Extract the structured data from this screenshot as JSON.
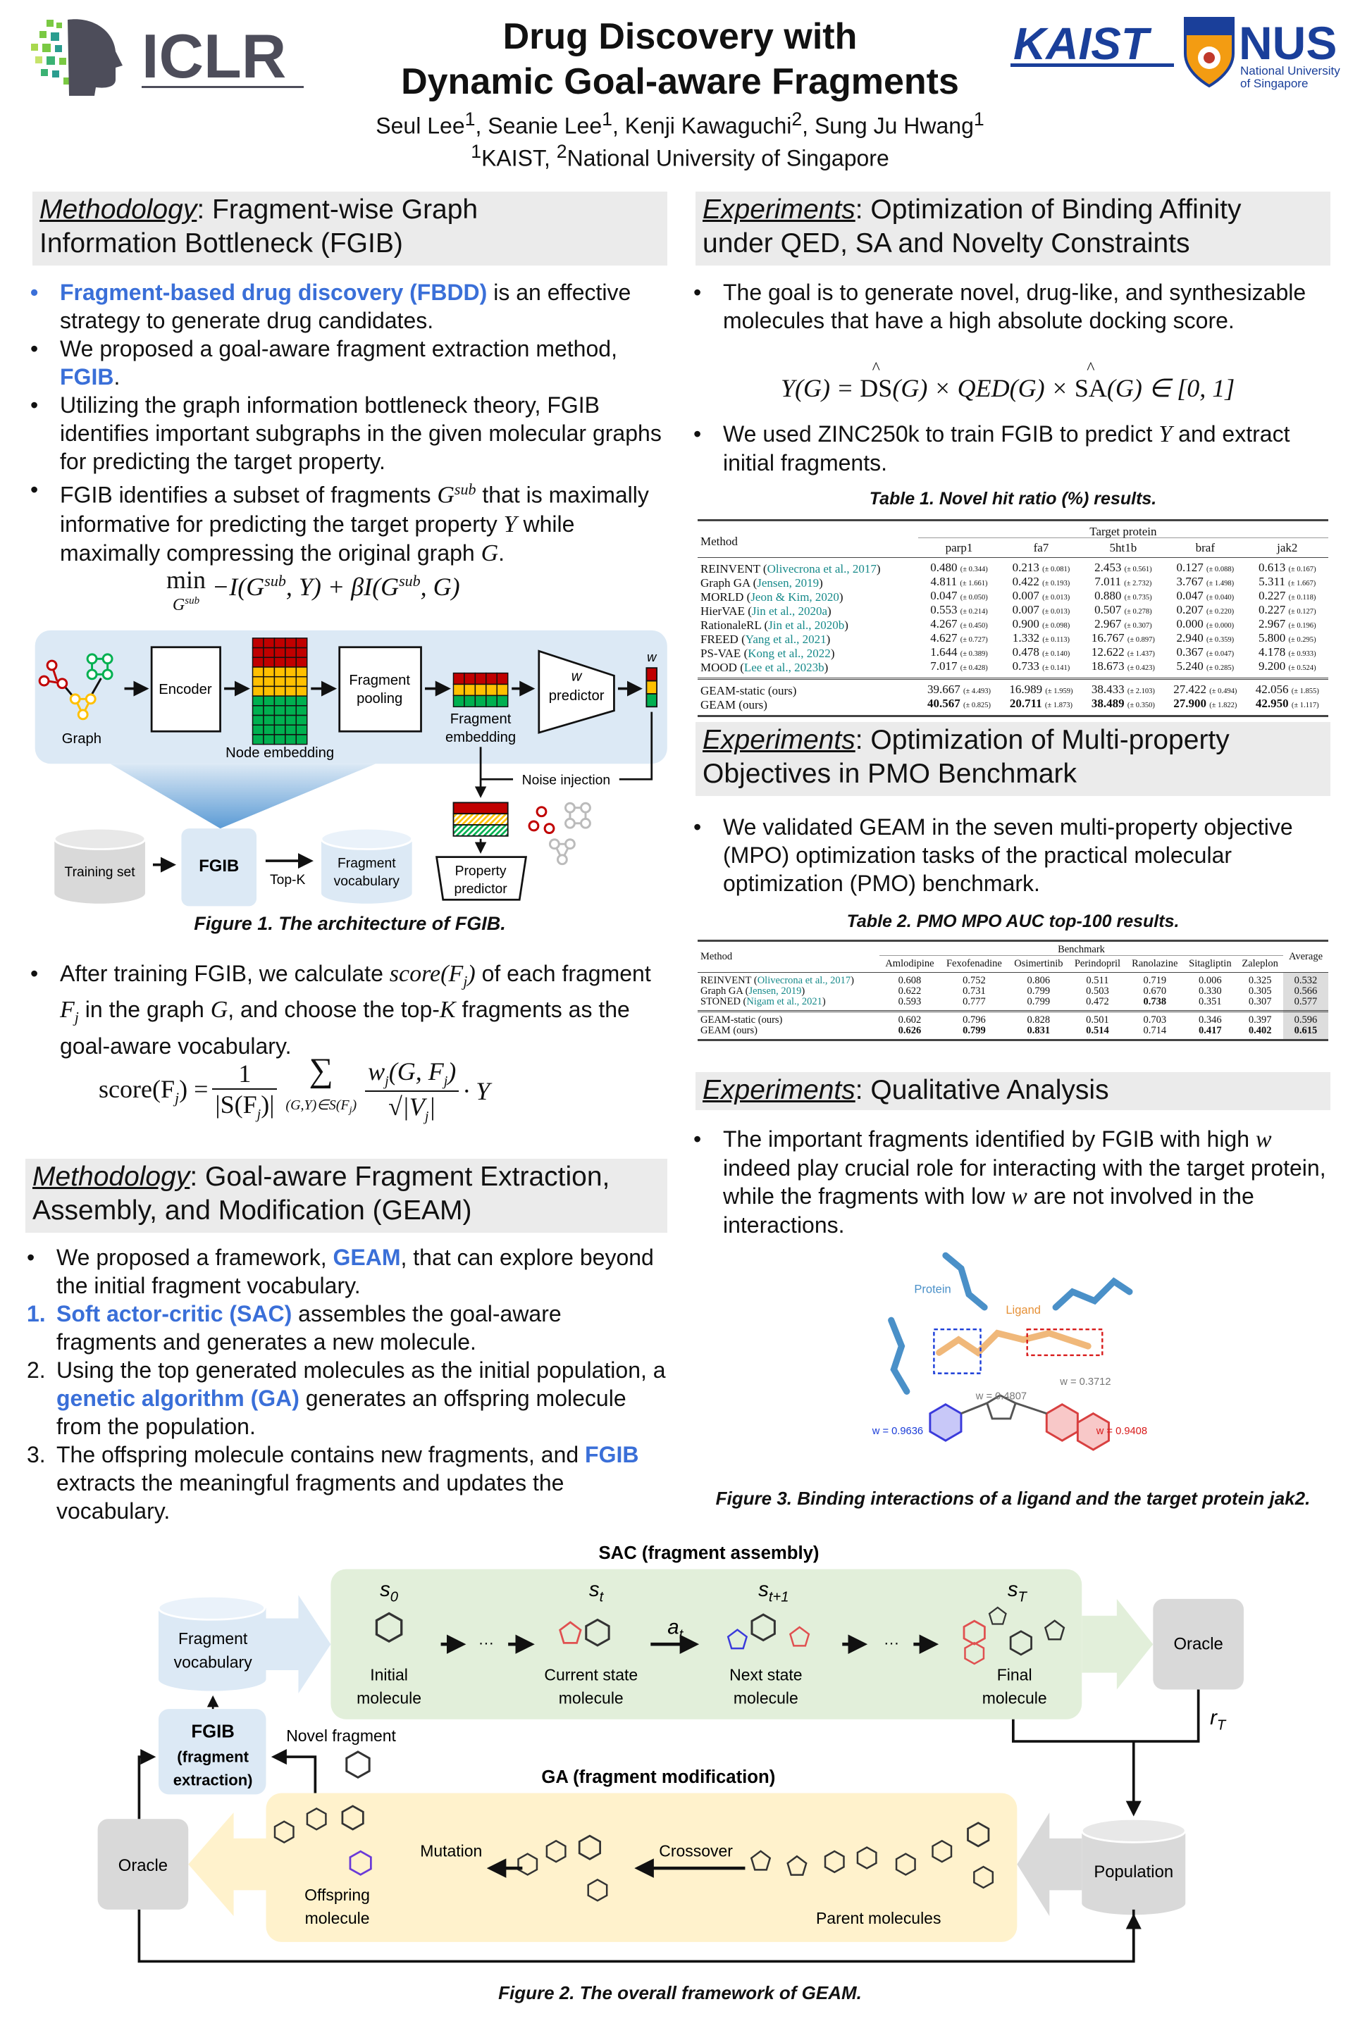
{
  "header": {
    "title_line1": "Drug Discovery with",
    "title_line2": "Dynamic Goal-aware Fragments",
    "authors": [
      {
        "name": "Seul Lee",
        "aff": "1"
      },
      {
        "name": "Seanie Lee",
        "aff": "1"
      },
      {
        "name": "Kenji Kawaguchi",
        "aff": "2"
      },
      {
        "name": "Sung Ju Hwang",
        "aff": "1"
      }
    ],
    "affiliations": [
      {
        "num": "1",
        "name": "KAIST"
      },
      {
        "num": "2",
        "name": "National University of Singapore"
      }
    ],
    "logos": {
      "iclr": "ICLR",
      "kaist": "KAIST",
      "nus": "NUS",
      "nus_sub1": "National University",
      "nus_sub2": "of Singapore"
    }
  },
  "colors": {
    "highlight": "#3a6fd8",
    "section_bg": "#ebebeb",
    "citation": "#178a8a",
    "red": "#c00000",
    "yellow": "#ffc000",
    "green": "#00b050"
  },
  "left": {
    "sec1": {
      "kw": "Methodology",
      "rest1": ": Fragment-wise Graph",
      "rest2": "Information Bottleneck (FGIB)"
    },
    "bullets1": [
      {
        "mk": "•",
        "mkhl": true,
        "segs": [
          {
            "t": "Fragment-based drug discovery (FBDD)",
            "s": "hl"
          },
          {
            "t": " is an effective strategy to generate drug candidates.",
            "s": ""
          }
        ]
      },
      {
        "mk": "•",
        "segs": [
          {
            "t": "We proposed a goal-aware fragment extraction method, ",
            "s": ""
          },
          {
            "t": "FGIB",
            "s": "hl"
          },
          {
            "t": ".",
            "s": ""
          }
        ]
      },
      {
        "mk": "•",
        "segs": [
          {
            "t": "Utilizing the graph information bottleneck theory, FGIB identifies important subgraphs in the given molecular graphs for predicting the target property.",
            "s": ""
          }
        ]
      },
      {
        "mk": "•",
        "segs": [
          {
            "t": "FGIB identifies a subset of fragments ",
            "s": ""
          },
          {
            "t": "G",
            "s": "m"
          },
          {
            "t": "sub",
            "s": "sup"
          },
          {
            "t": " that is maximally informative for predicting the target property ",
            "s": ""
          },
          {
            "t": "Y",
            "s": "m"
          },
          {
            "t": " while maximally compressing the original graph ",
            "s": ""
          },
          {
            "t": "G",
            "s": "m"
          },
          {
            "t": ".",
            "s": ""
          }
        ]
      }
    ],
    "formula1": {
      "min": "min",
      "under": "G",
      "under_sup": "sub",
      "body": "−I(G",
      "sup1": "sub",
      "body2": ", Y) + βI(G",
      "sup2": "sub",
      "body3": ", G)"
    },
    "fig1": {
      "graph": "Graph",
      "encoder": "Encoder",
      "node_embedding": "Node embedding",
      "pool1": "Fragment",
      "pool2": "pooling",
      "femb1": "Fragment",
      "femb2": "embedding",
      "wpred1": "w",
      "wpred2": "predictor",
      "w": "w",
      "noise": "Noise injection",
      "prop1": "Property",
      "prop2": "predictor",
      "training": "Training set",
      "fgib": "FGIB",
      "topk": "Top-K",
      "vocab1": "Fragment",
      "vocab2": "vocabulary",
      "caption_label": "Figure 1.",
      "caption": " The architecture of FGIB."
    },
    "bullets2": [
      {
        "mk": "•",
        "segs": [
          {
            "t": "After training FGIB, we calculate ",
            "s": ""
          },
          {
            "t": "score",
            "s": "m"
          },
          {
            "t": "(",
            "s": "m"
          },
          {
            "t": "F",
            "s": "m"
          },
          {
            "t": "j",
            "s": "sub"
          },
          {
            "t": ")",
            "s": "m"
          },
          {
            "t": " of each fragment ",
            "s": ""
          },
          {
            "t": "F",
            "s": "m"
          },
          {
            "t": "j",
            "s": "sub"
          },
          {
            "t": " in the graph ",
            "s": ""
          },
          {
            "t": "G",
            "s": "m"
          },
          {
            "t": ", and choose the top-",
            "s": ""
          },
          {
            "t": "K",
            "s": "m"
          },
          {
            "t": " fragments as the goal-aware vocabulary.",
            "s": ""
          }
        ]
      }
    ],
    "formula2": {
      "lhs": "score(F",
      "lhs_sub": "j",
      "lhs2": ") =",
      "n1": "1",
      "d1": "|S(F",
      "d1_sub": "j",
      "d1b": ")|",
      "sigma": "∑",
      "sigma_under": "(G,Y)∈S(F",
      "sigma_under_sub": "j",
      "sigma_under2": ")",
      "n2": "w",
      "n2_sub": "j",
      "n2b": "(G, F",
      "n2b_sub": "j",
      "n2c": ")",
      "d2": "√|V",
      "d2_sub": "j",
      "d2b": "|",
      "tail": "· Y"
    },
    "sec2": {
      "kw": "Methodology",
      "rest1": ": Goal-aware Fragment Extraction,",
      "rest2": "Assembly, and Modification (GEAM)"
    },
    "bullets3": [
      {
        "mk": "•",
        "segs": [
          {
            "t": "We proposed a framework, ",
            "s": ""
          },
          {
            "t": "GEAM",
            "s": "hl"
          },
          {
            "t": ", that can explore beyond the initial fragment vocabulary.",
            "s": ""
          }
        ]
      },
      {
        "mk": "1.",
        "mkhl": true,
        "segs": [
          {
            "t": "Soft actor-critic (SAC)",
            "s": "hl"
          },
          {
            "t": " assembles the goal-aware fragments and generates a new molecule.",
            "s": ""
          }
        ]
      },
      {
        "mk": "2.",
        "segs": [
          {
            "t": "Using the top generated molecules as the initial population, a ",
            "s": ""
          },
          {
            "t": "genetic algorithm (GA)",
            "s": "hl"
          },
          {
            "t": " generates an offspring molecule from the population.",
            "s": ""
          }
        ]
      },
      {
        "mk": "3.",
        "segs": [
          {
            "t": "The offspring molecule contains new fragments, and ",
            "s": ""
          },
          {
            "t": "FGIB",
            "s": "hl"
          },
          {
            "t": " extracts the meaningful fragments and updates the vocabulary.",
            "s": ""
          }
        ]
      }
    ]
  },
  "right": {
    "sec1": {
      "kw": "Experiments",
      "rest1": ": Optimization of Binding Affinity",
      "rest2": "under QED, SA and Novelty Constraints"
    },
    "bullets1": [
      {
        "mk": "•",
        "segs": [
          {
            "t": "The goal is to generate novel, drug-like, and synthesizable molecules that have a high absolute docking score.",
            "s": ""
          }
        ]
      }
    ],
    "formula": {
      "lhs": "Y(G) =",
      "ds": "DS",
      "g1": "(G) × QED(G) ×",
      "sa": "SA",
      "g2": "(G) ∈ [0, 1]"
    },
    "bullets2": [
      {
        "mk": "•",
        "segs": [
          {
            "t": "We used ZINC250k to train FGIB to predict ",
            "s": ""
          },
          {
            "t": "Y",
            "s": "m"
          },
          {
            "t": " and extract initial fragments.",
            "s": ""
          }
        ]
      }
    ],
    "table1": {
      "caption_label": "Table 1.",
      "caption": " Novel hit ratio (%) results.",
      "method_label": "Method",
      "group_label": "Target protein",
      "columns": [
        "parp1",
        "fa7",
        "5ht1b",
        "braf",
        "jak2"
      ],
      "rows": [
        {
          "method": "REINVENT (",
          "cite": "Olivecrona et al., 2017",
          "close": ")",
          "values": [
            [
              "0.480",
              "(± 0.344)"
            ],
            [
              "0.213",
              "(± 0.081)"
            ],
            [
              "2.453",
              "(± 0.561)"
            ],
            [
              "0.127",
              "(± 0.088)"
            ],
            [
              "0.613",
              "(± 0.167)"
            ]
          ]
        },
        {
          "method": "Graph GA (",
          "cite": "Jensen, 2019",
          "close": ")",
          "values": [
            [
              "4.811",
              "(± 1.661)"
            ],
            [
              "0.422",
              "(± 0.193)"
            ],
            [
              "7.011",
              "(± 2.732)"
            ],
            [
              "3.767",
              "(± 1.498)"
            ],
            [
              "5.311",
              "(± 1.667)"
            ]
          ]
        },
        {
          "method": "MORLD (",
          "cite": "Jeon & Kim, 2020",
          "close": ")",
          "values": [
            [
              "0.047",
              "(± 0.050)"
            ],
            [
              "0.007",
              "(± 0.013)"
            ],
            [
              "0.880",
              "(± 0.735)"
            ],
            [
              "0.047",
              "(± 0.040)"
            ],
            [
              "0.227",
              "(± 0.118)"
            ]
          ]
        },
        {
          "method": "HierVAE (",
          "cite": "Jin et al., 2020a",
          "close": ")",
          "values": [
            [
              "0.553",
              "(± 0.214)"
            ],
            [
              "0.007",
              "(± 0.013)"
            ],
            [
              "0.507",
              "(± 0.278)"
            ],
            [
              "0.207",
              "(± 0.220)"
            ],
            [
              "0.227",
              "(± 0.127)"
            ]
          ]
        },
        {
          "method": "RationaleRL (",
          "cite": "Jin et al., 2020b",
          "close": ")",
          "values": [
            [
              "4.267",
              "(± 0.450)"
            ],
            [
              "0.900",
              "(± 0.098)"
            ],
            [
              "2.967",
              "(± 0.307)"
            ],
            [
              "0.000",
              "(± 0.000)"
            ],
            [
              "2.967",
              "(± 0.196)"
            ]
          ]
        },
        {
          "method": "FREED (",
          "cite": "Yang et al., 2021",
          "close": ")",
          "values": [
            [
              "4.627",
              "(± 0.727)"
            ],
            [
              "1.332",
              "(± 0.113)"
            ],
            [
              "16.767",
              "(± 0.897)"
            ],
            [
              "2.940",
              "(± 0.359)"
            ],
            [
              "5.800",
              "(± 0.295)"
            ]
          ]
        },
        {
          "method": "PS-VAE (",
          "cite": "Kong et al., 2022",
          "close": ")",
          "values": [
            [
              "1.644",
              "(± 0.389)"
            ],
            [
              "0.478",
              "(± 0.140)"
            ],
            [
              "12.622",
              "(± 1.437)"
            ],
            [
              "0.367",
              "(± 0.047)"
            ],
            [
              "4.178",
              "(± 0.933)"
            ]
          ]
        },
        {
          "method": "MOOD (",
          "cite": "Lee et al., 2023b",
          "close": ")",
          "values": [
            [
              "7.017",
              "(± 0.428)"
            ],
            [
              "0.733",
              "(± 0.141)"
            ],
            [
              "18.673",
              "(± 0.423)"
            ],
            [
              "5.240",
              "(± 0.285)"
            ],
            [
              "9.200",
              "(± 0.524)"
            ]
          ]
        }
      ],
      "ours": [
        {
          "method": "GEAM-static (ours)",
          "bold": false,
          "values": [
            [
              "39.667",
              "(± 4.493)"
            ],
            [
              "16.989",
              "(± 1.959)"
            ],
            [
              "38.433",
              "(± 2.103)"
            ],
            [
              "27.422",
              "(± 0.494)"
            ],
            [
              "42.056",
              "(± 1.855)"
            ]
          ]
        },
        {
          "method": "GEAM (ours)",
          "bold": true,
          "values": [
            [
              "40.567",
              "(± 0.825)"
            ],
            [
              "20.711",
              "(± 1.873)"
            ],
            [
              "38.489",
              "(± 0.350)"
            ],
            [
              "27.900",
              "(± 1.822)"
            ],
            [
              "42.950",
              "(± 1.117)"
            ]
          ]
        }
      ]
    },
    "sec2": {
      "kw": "Experiments",
      "rest1": ": Optimization of Multi-property",
      "rest2": "Objectives in PMO Benchmark"
    },
    "bullets3": [
      {
        "mk": "•",
        "segs": [
          {
            "t": "We validated GEAM in the seven multi-property objective (MPO) optimization tasks of the practical molecular optimization (PMO) benchmark.",
            "s": ""
          }
        ]
      }
    ],
    "table2": {
      "caption_label": "Table 2.",
      "caption": " PMO MPO AUC top-100 results.",
      "method_label": "Method",
      "group_label": "Benchmark",
      "avg_label": "Average",
      "columns": [
        "Amlodipine",
        "Fexofenadine",
        "Osimertinib",
        "Perindopril",
        "Ranolazine",
        "Sitagliptin",
        "Zaleplon"
      ],
      "rows": [
        {
          "method": "REINVENT (",
          "cite": "Olivecrona et al., 2017",
          "close": ")",
          "values": [
            "0.608",
            "0.752",
            "0.806",
            "0.511",
            "0.719",
            "0.006",
            "0.325"
          ],
          "bold": [],
          "avg": "0.532"
        },
        {
          "method": "Graph GA (",
          "cite": "Jensen, 2019",
          "close": ")",
          "values": [
            "0.622",
            "0.731",
            "0.799",
            "0.503",
            "0.670",
            "0.330",
            "0.305"
          ],
          "bold": [],
          "avg": "0.566"
        },
        {
          "method": "STONED (",
          "cite": "Nigam et al., 2021",
          "close": ")",
          "values": [
            "0.593",
            "0.777",
            "0.799",
            "0.472",
            "0.738",
            "0.351",
            "0.307"
          ],
          "bold": [
            4
          ],
          "avg": "0.577"
        }
      ],
      "ours": [
        {
          "method": "GEAM-static (ours)",
          "values": [
            "0.602",
            "0.796",
            "0.828",
            "0.501",
            "0.703",
            "0.346",
            "0.397"
          ],
          "bold": [],
          "avg": "0.596",
          "avg_bold": false
        },
        {
          "method": "GEAM (ours)",
          "values": [
            "0.626",
            "0.799",
            "0.831",
            "0.514",
            "0.714",
            "0.417",
            "0.402"
          ],
          "bold": [
            0,
            1,
            2,
            3,
            5,
            6
          ],
          "avg": "0.615",
          "avg_bold": true
        }
      ]
    },
    "sec3": {
      "kw": "Experiments",
      "rest1": ": Qualitative Analysis"
    },
    "bullets4": [
      {
        "mk": "•",
        "segs": [
          {
            "t": "The important fragments identified by FGIB with high ",
            "s": ""
          },
          {
            "t": "w",
            "s": "m"
          },
          {
            "t": " indeed play crucial role for interacting with the target protein, while the fragments with low ",
            "s": ""
          },
          {
            "t": "w",
            "s": "m"
          },
          {
            "t": " are not involved in the interactions.",
            "s": ""
          }
        ]
      }
    ],
    "fig3": {
      "protein": "Protein",
      "ligand": "Ligand",
      "w1": "w = 0.4807",
      "w2": "w = 0.3712",
      "w3": "w = 0.9636",
      "w4": "w = 0.9408",
      "caption_label": "Figure 3.",
      "caption": " Binding interactions of a ligand and the target protein jak2."
    }
  },
  "fig2": {
    "sac_title": "SAC (fragment assembly)",
    "ga_title": "GA (fragment modification)",
    "s0": "s",
    "s0_sub": "0",
    "st": "s",
    "st_sub": "t",
    "st1": "s",
    "st1_sub": "t+1",
    "sT": "s",
    "sT_sub": "T",
    "at": "a",
    "at_sub": "t",
    "rT": "r",
    "rT_sub": "T",
    "dots": "···",
    "initial1": "Initial",
    "initial2": "molecule",
    "current1": "Current state",
    "current2": "molecule",
    "next1": "Next state",
    "next2": "molecule",
    "final1": "Final",
    "final2": "molecule",
    "oracle": "Oracle",
    "vocab1": "Fragment",
    "vocab2": "vocabulary",
    "fgib1": "FGIB",
    "fgib2": "(fragment",
    "fgib3": "extraction)",
    "novel": "Novel fragment",
    "mutation": "Mutation",
    "crossover": "Crossover",
    "offspring1": "Offspring",
    "offspring2": "molecule",
    "parents": "Parent molecules",
    "population": "Population",
    "caption_label": "Figure 2.",
    "caption": " The overall framework of GEAM."
  }
}
